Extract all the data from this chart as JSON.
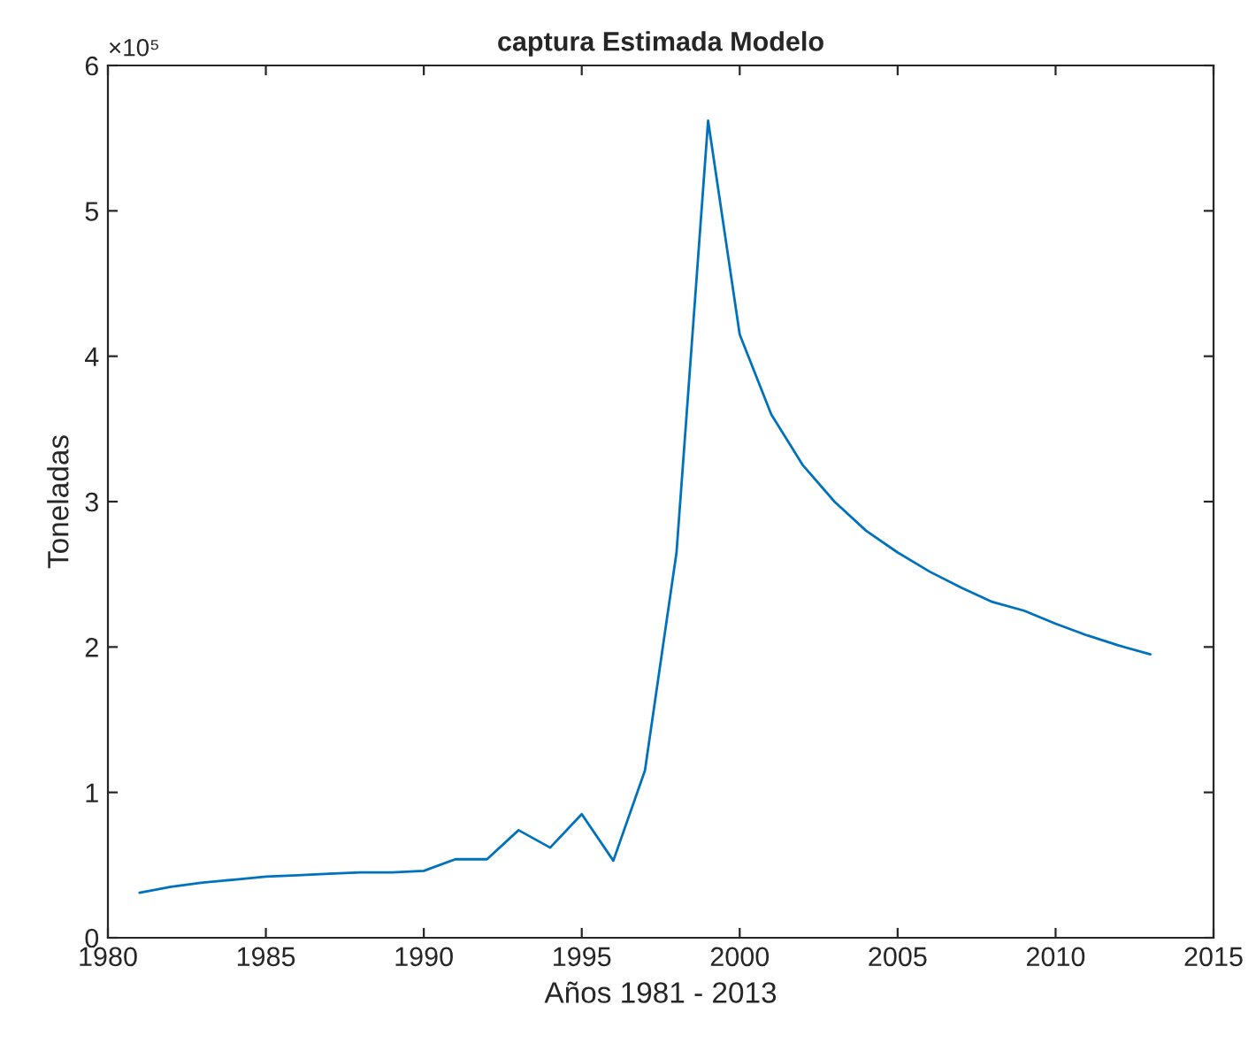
{
  "chart_data": {
    "type": "line",
    "title": "captura Estimada Modelo",
    "xlabel": "Años 1981 - 2013",
    "ylabel": "Toneladas",
    "annotations": [
      "×10⁵"
    ],
    "x": [
      1981,
      1982,
      1983,
      1984,
      1985,
      1986,
      1987,
      1988,
      1989,
      1990,
      1991,
      1992,
      1993,
      1994,
      1995,
      1996,
      1997,
      1998,
      1999,
      2000,
      2001,
      2002,
      2003,
      2004,
      2005,
      2006,
      2007,
      2008,
      2009,
      2010,
      2011,
      2012,
      2013
    ],
    "series": [
      {
        "color": "#0072bd",
        "values": [
          0.31,
          0.35,
          0.38,
          0.4,
          0.42,
          0.43,
          0.44,
          0.45,
          0.45,
          0.46,
          0.54,
          0.54,
          0.74,
          0.62,
          0.85,
          0.53,
          1.15,
          2.65,
          5.62,
          4.15,
          3.6,
          3.25,
          3.0,
          2.8,
          2.65,
          2.52,
          2.41,
          2.31,
          2.25,
          2.16,
          2.08,
          2.01,
          1.95
        ]
      }
    ],
    "xlim": [
      1980,
      2015
    ],
    "xticks": [
      1980,
      1985,
      1990,
      1995,
      2000,
      2005,
      2010,
      2015
    ],
    "ylim": [
      0,
      6
    ],
    "yticks": [
      0,
      1,
      2,
      3,
      4,
      5,
      6
    ],
    "grid": false,
    "legend": false,
    "marker": "none",
    "line_style": "solid"
  }
}
